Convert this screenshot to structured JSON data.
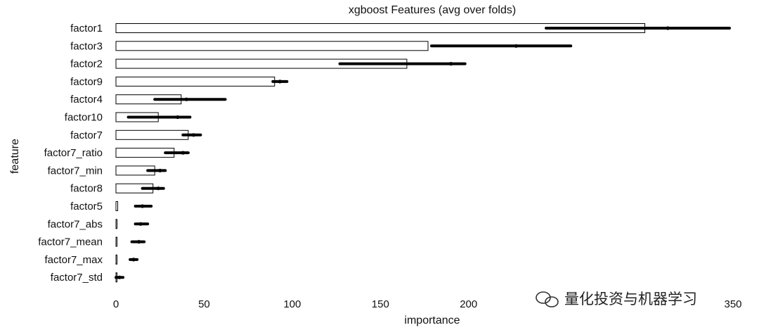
{
  "chart_data": {
    "type": "bar",
    "orientation": "horizontal",
    "title": "xgboost Features (avg over folds)",
    "xlabel": "importance",
    "ylabel": "feature",
    "xlim": [
      0,
      350
    ],
    "xticks": [
      0,
      50,
      100,
      150,
      200,
      250,
      350
    ],
    "xtick_labels": [
      "0",
      "50",
      "100",
      "150",
      "200",
      "",
      "350"
    ],
    "grid": false,
    "categories": [
      "factor1",
      "factor3",
      "factor2",
      "factor9",
      "factor4",
      "factor10",
      "factor7",
      "factor7_ratio",
      "factor7_min",
      "factor8",
      "factor5",
      "factor7_abs",
      "factor7_mean",
      "factor7_max",
      "factor7_std"
    ],
    "series": [
      {
        "values": [
          300,
          177,
          165,
          90,
          37,
          24,
          41,
          33,
          22,
          21,
          1,
          0,
          0,
          0,
          0
        ],
        "fill": "#ffffff",
        "stroke": "#000000"
      },
      {
        "values": [
          313,
          227,
          190,
          93,
          40,
          35,
          44,
          38,
          25,
          24,
          15,
          14,
          13,
          10,
          2
        ],
        "err_low": [
          244,
          179,
          127,
          89,
          22,
          7,
          38,
          28,
          18,
          15,
          11,
          11,
          9,
          8,
          0
        ],
        "err_high": [
          348,
          258,
          198,
          97,
          62,
          42,
          48,
          41,
          28,
          27,
          20,
          18,
          16,
          12,
          4
        ],
        "color": "#000000"
      }
    ]
  },
  "watermark": {
    "text": "量化投资与机器学习"
  }
}
